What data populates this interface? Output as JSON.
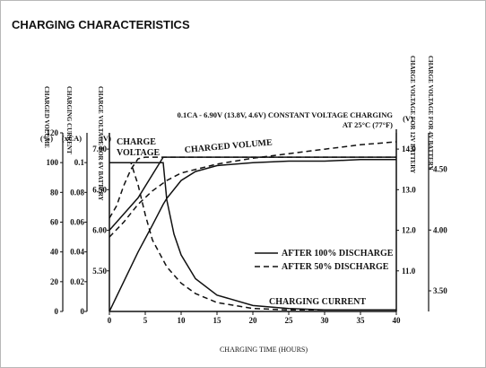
{
  "title": "CHARGING CHARACTERISTICS",
  "chart_data": {
    "type": "line",
    "condition": "0.1CA - 6.90V (13.8V, 4.6V) CONSTANT VOLTAGE CHARGING",
    "temperature": "AT 25°C (77°F)",
    "xlabel": "CHARGING TIME (HOURS)",
    "xlim": [
      0,
      40
    ],
    "x_ticks": [
      "0",
      "5",
      "10",
      "15",
      "20",
      "25",
      "30",
      "35",
      "40"
    ],
    "axes": {
      "charged_volume": {
        "label": "CHARGED VOLUME",
        "unit": "(%)",
        "range": [
          0,
          120
        ],
        "ticks": [
          "0",
          "20",
          "40",
          "60",
          "80",
          "100",
          "120"
        ]
      },
      "charging_current": {
        "label": "CHARGING CURRENT",
        "unit": "(xCA)",
        "range": [
          0,
          0.12
        ],
        "ticks": [
          "0",
          "0.02",
          "0.04",
          "0.06",
          "0.08",
          "0.1"
        ]
      },
      "charge_voltage_6v": {
        "label": "CHARGE VOLTAGE FOR 6V BATTERY",
        "unit": "(V)",
        "range": [
          5.0,
          7.2
        ],
        "ticks": [
          "5.50",
          "6.00",
          "6.50",
          "7.00"
        ]
      },
      "charge_voltage_12v": {
        "label": "CHARGE VOLTAGE FOR 12V BATTERY",
        "unit": "(V)",
        "range": [
          10.0,
          14.4
        ],
        "ticks": [
          "11.0",
          "12.0",
          "13.0",
          "14.0"
        ]
      },
      "charge_voltage_4v": {
        "label": "CHARGE VOLTAGE FOR 4V BATTERY",
        "range": [
          3.33,
          4.8
        ],
        "ticks": [
          "3.50",
          "4.00",
          "4.50"
        ]
      }
    },
    "curve_labels": [
      "CHARGE VOLTAGE",
      "CHARGED VOLUME",
      "CHARGING CURRENT"
    ],
    "legend": {
      "position": "lower-right",
      "entries": [
        {
          "label": "AFTER 100% DISCHARGE",
          "style": "solid"
        },
        {
          "label": "AFTER 50% DISCHARGE",
          "style": "dashed"
        }
      ]
    },
    "series": [
      {
        "name": "AFTER 100% DISCHARGE",
        "quantity": "charge voltage",
        "axis": "charge_voltage_6v",
        "x": [
          0,
          4,
          7.5,
          8,
          10,
          20,
          30,
          40
        ],
        "values": [
          6.0,
          6.4,
          6.9,
          6.9,
          6.9,
          6.9,
          6.9,
          6.9
        ]
      },
      {
        "name": "AFTER 100% DISCHARGE",
        "quantity": "charged volume",
        "axis": "charged_volume",
        "x": [
          0,
          2,
          4,
          6,
          7.5,
          8,
          10,
          12,
          15,
          20,
          25,
          30,
          35,
          40
        ],
        "values": [
          0,
          20,
          40,
          58,
          72,
          76,
          88,
          94,
          98,
          100,
          101,
          101,
          102,
          102
        ]
      },
      {
        "name": "AFTER 100% DISCHARGE",
        "quantity": "charging current",
        "axis": "charging_current",
        "x": [
          0,
          7.5,
          8,
          9,
          10,
          12,
          15,
          20,
          25,
          30,
          40
        ],
        "values": [
          0.1,
          0.1,
          0.075,
          0.052,
          0.038,
          0.022,
          0.011,
          0.004,
          0.002,
          0.001,
          0.001
        ]
      },
      {
        "name": "AFTER 50% DISCHARGE",
        "quantity": "charge voltage",
        "axis": "charge_voltage_6v",
        "x": [
          0,
          1,
          2,
          3,
          4,
          5,
          40
        ],
        "values": [
          6.15,
          6.3,
          6.55,
          6.75,
          6.88,
          6.9,
          6.9
        ]
      },
      {
        "name": "AFTER 50% DISCHARGE",
        "quantity": "charged volume",
        "axis": "charged_volume",
        "x": [
          0,
          2,
          4,
          6,
          8,
          10,
          15,
          20,
          25,
          30,
          35,
          40
        ],
        "values": [
          50,
          60,
          72,
          81,
          88,
          93,
          99,
          103,
          106,
          109,
          112,
          114
        ]
      },
      {
        "name": "AFTER 50% DISCHARGE",
        "quantity": "charging current",
        "axis": "charging_current",
        "x": [
          0,
          2,
          3,
          4,
          5,
          6,
          8,
          10,
          12,
          15,
          20,
          25,
          30,
          40
        ],
        "values": [
          0.1,
          0.1,
          0.1,
          0.085,
          0.065,
          0.048,
          0.03,
          0.019,
          0.012,
          0.006,
          0.002,
          0.001,
          0.001,
          0.001
        ]
      }
    ]
  }
}
